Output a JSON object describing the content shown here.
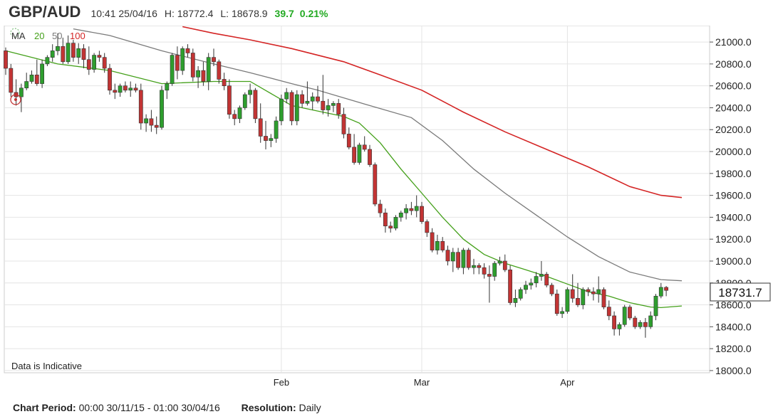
{
  "header": {
    "symbol": "GBP/AUD",
    "timestamp": "10:41 25/04/16",
    "high": "H: 18772.4",
    "low": "L: 18678.9",
    "change": "39.7",
    "change_pct": "0.21%",
    "change_color": "#22aa22"
  },
  "legend": {
    "ma_label": "MA",
    "ma20_label": "20",
    "ma50_label": "50",
    "ma100_label": "100",
    "ma20_color": "#44a01a",
    "ma50_color": "#7a7a7a",
    "ma100_color": "#d42424"
  },
  "notice": "Data is Indicative",
  "footer": {
    "period_label": "Chart Period:",
    "period_value": "00:00 30/11/15 - 01:00 30/04/16",
    "resolution_label": "Resolution:",
    "resolution_value": "Daily"
  },
  "chart_data": {
    "type": "candlestick",
    "title": "GBP/AUD",
    "y_ticks": [
      18000,
      18200,
      18400,
      18600,
      18800,
      19000,
      19200,
      19400,
      19600,
      19800,
      20000,
      20200,
      20400,
      20600,
      20800,
      21000
    ],
    "y_tick_labels": [
      "18000.0",
      "18200.0",
      "18400.0",
      "18600.0",
      "18800.0",
      "19000.0",
      "19200.0",
      "19400.0",
      "19600.0",
      "19800.0",
      "20000.0",
      "20200.0",
      "20400.0",
      "20600.0",
      "20800.0",
      "21000.0"
    ],
    "ylim": [
      17980,
      21150
    ],
    "x_month_labels": [
      "Feb",
      "Mar",
      "Apr"
    ],
    "x_month_index": [
      53,
      80,
      108
    ],
    "current_price": "18731.7",
    "up_color": "#2e9e2e",
    "down_color": "#c23434",
    "candles": [
      [
        20920,
        20950,
        20700,
        20760
      ],
      [
        20760,
        20800,
        20500,
        20540
      ],
      [
        20540,
        20660,
        20420,
        20500
      ],
      [
        20500,
        20620,
        20360,
        20580
      ],
      [
        20580,
        20720,
        20560,
        20640
      ],
      [
        20640,
        20740,
        20620,
        20700
      ],
      [
        20700,
        20840,
        20600,
        20620
      ],
      [
        20620,
        20840,
        20580,
        20800
      ],
      [
        20800,
        20880,
        20780,
        20860
      ],
      [
        20860,
        20980,
        20820,
        20920
      ],
      [
        20920,
        21080,
        20880,
        20960
      ],
      [
        20960,
        21040,
        20800,
        20820
      ],
      [
        20820,
        21060,
        20800,
        20990
      ],
      [
        20990,
        21020,
        20820,
        20860
      ],
      [
        20860,
        20990,
        20800,
        20940
      ],
      [
        20940,
        20980,
        20760,
        20840
      ],
      [
        20840,
        20960,
        20700,
        20750
      ],
      [
        20750,
        20900,
        20720,
        20880
      ],
      [
        20880,
        20920,
        20820,
        20860
      ],
      [
        20860,
        20900,
        20720,
        20760
      ],
      [
        20760,
        20800,
        20520,
        20560
      ],
      [
        20560,
        20620,
        20480,
        20540
      ],
      [
        20540,
        20620,
        20500,
        20600
      ],
      [
        20600,
        20640,
        20540,
        20560
      ],
      [
        20560,
        20640,
        20500,
        20580
      ],
      [
        20580,
        20620,
        20540,
        20560
      ],
      [
        20560,
        20620,
        20200,
        20260
      ],
      [
        20260,
        20340,
        20180,
        20300
      ],
      [
        20300,
        20380,
        20180,
        20240
      ],
      [
        20240,
        20320,
        20160,
        20220
      ],
      [
        20220,
        20600,
        20200,
        20560
      ],
      [
        20560,
        20640,
        20480,
        20620
      ],
      [
        20620,
        20900,
        20600,
        20880
      ],
      [
        20880,
        20960,
        20660,
        20740
      ],
      [
        20740,
        20960,
        20700,
        20940
      ],
      [
        20940,
        20980,
        20860,
        20900
      ],
      [
        20900,
        20940,
        20640,
        20680
      ],
      [
        20680,
        20780,
        20580,
        20740
      ],
      [
        20740,
        20820,
        20600,
        20640
      ],
      [
        20640,
        20900,
        20560,
        20860
      ],
      [
        20860,
        20940,
        20780,
        20820
      ],
      [
        20820,
        20840,
        20620,
        20660
      ],
      [
        20660,
        20720,
        20560,
        20600
      ],
      [
        20600,
        20660,
        20300,
        20340
      ],
      [
        20340,
        20380,
        20240,
        20300
      ],
      [
        20300,
        20420,
        20260,
        20400
      ],
      [
        20400,
        20540,
        20380,
        20520
      ],
      [
        20520,
        20620,
        20440,
        20560
      ],
      [
        20560,
        20580,
        20260,
        20300
      ],
      [
        20300,
        20440,
        20080,
        20140
      ],
      [
        20140,
        20280,
        20020,
        20100
      ],
      [
        20100,
        20160,
        20040,
        20120
      ],
      [
        20120,
        20320,
        20080,
        20280
      ],
      [
        20280,
        20520,
        20240,
        20480
      ],
      [
        20480,
        20580,
        20440,
        20540
      ],
      [
        20540,
        20560,
        20240,
        20280
      ],
      [
        20280,
        20560,
        20240,
        20520
      ],
      [
        20520,
        20560,
        20400,
        20440
      ],
      [
        20440,
        20640,
        20420,
        20460
      ],
      [
        20460,
        20540,
        20380,
        20500
      ],
      [
        20500,
        20600,
        20440,
        20460
      ],
      [
        20460,
        20700,
        20340,
        20380
      ],
      [
        20380,
        20480,
        20320,
        20420
      ],
      [
        20420,
        20460,
        20360,
        20440
      ],
      [
        20440,
        20480,
        20300,
        20340
      ],
      [
        20340,
        20400,
        20120,
        20160
      ],
      [
        20160,
        20220,
        20020,
        20040
      ],
      [
        20040,
        20160,
        19880,
        19900
      ],
      [
        19900,
        20080,
        19880,
        20060
      ],
      [
        20060,
        20140,
        20000,
        20020
      ],
      [
        20020,
        20060,
        19860,
        19880
      ],
      [
        19880,
        19900,
        19500,
        19520
      ],
      [
        19520,
        19560,
        19400,
        19440
      ],
      [
        19440,
        19480,
        19260,
        19320
      ],
      [
        19320,
        19360,
        19260,
        19300
      ],
      [
        19300,
        19420,
        19280,
        19400
      ],
      [
        19400,
        19460,
        19360,
        19440
      ],
      [
        19440,
        19520,
        19380,
        19480
      ],
      [
        19480,
        19540,
        19420,
        19460
      ],
      [
        19460,
        19600,
        19400,
        19500
      ],
      [
        19500,
        19540,
        19340,
        19360
      ],
      [
        19360,
        19380,
        19220,
        19260
      ],
      [
        19260,
        19300,
        19080,
        19100
      ],
      [
        19100,
        19240,
        19060,
        19180
      ],
      [
        19180,
        19220,
        19080,
        19100
      ],
      [
        19100,
        19140,
        18960,
        19000
      ],
      [
        19000,
        19120,
        18900,
        19080
      ],
      [
        19080,
        19120,
        18920,
        18940
      ],
      [
        18940,
        19120,
        18880,
        19100
      ],
      [
        19100,
        19120,
        18920,
        18940
      ],
      [
        18940,
        19020,
        18880,
        18960
      ],
      [
        18960,
        18980,
        18880,
        18940
      ],
      [
        18940,
        18980,
        18840,
        18880
      ],
      [
        18880,
        18960,
        18620,
        18860
      ],
      [
        18860,
        19000,
        18820,
        18980
      ],
      [
        18980,
        19040,
        18960,
        19000
      ],
      [
        19000,
        19060,
        18900,
        18920
      ],
      [
        18920,
        18960,
        18600,
        18620
      ],
      [
        18620,
        18740,
        18580,
        18660
      ],
      [
        18660,
        18760,
        18640,
        18740
      ],
      [
        18740,
        18820,
        18700,
        18780
      ],
      [
        18780,
        18840,
        18740,
        18800
      ],
      [
        18800,
        18900,
        18760,
        18860
      ],
      [
        18860,
        19000,
        18820,
        18880
      ],
      [
        18880,
        18900,
        18760,
        18780
      ],
      [
        18780,
        18800,
        18680,
        18700
      ],
      [
        18700,
        18740,
        18500,
        18520
      ],
      [
        18520,
        18580,
        18480,
        18540
      ],
      [
        18540,
        18760,
        18520,
        18740
      ],
      [
        18740,
        18880,
        18620,
        18660
      ],
      [
        18660,
        18800,
        18580,
        18600
      ],
      [
        18600,
        18760,
        18560,
        18740
      ],
      [
        18740,
        18760,
        18680,
        18720
      ],
      [
        18720,
        18760,
        18640,
        18700
      ],
      [
        18700,
        18860,
        18620,
        18740
      ],
      [
        18740,
        18760,
        18560,
        18580
      ],
      [
        18580,
        18640,
        18460,
        18500
      ],
      [
        18500,
        18540,
        18320,
        18380
      ],
      [
        18380,
        18440,
        18320,
        18420
      ],
      [
        18420,
        18600,
        18400,
        18580
      ],
      [
        18580,
        18600,
        18460,
        18480
      ],
      [
        18480,
        18500,
        18380,
        18400
      ],
      [
        18400,
        18460,
        18380,
        18440
      ],
      [
        18440,
        18480,
        18300,
        18400
      ],
      [
        18400,
        18540,
        18380,
        18500
      ],
      [
        18500,
        18700,
        18460,
        18680
      ],
      [
        18680,
        18800,
        18660,
        18760
      ],
      [
        18760,
        18772,
        18679,
        18732
      ]
    ],
    "ma20": [
      [
        0,
        20920
      ],
      [
        10,
        20800
      ],
      [
        20,
        20740
      ],
      [
        30,
        20620
      ],
      [
        40,
        20640
      ],
      [
        47,
        20640
      ],
      [
        55,
        20420
      ],
      [
        60,
        20370
      ],
      [
        65,
        20320
      ],
      [
        68,
        20260
      ],
      [
        72,
        20080
      ],
      [
        76,
        19840
      ],
      [
        80,
        19620
      ],
      [
        84,
        19400
      ],
      [
        88,
        19200
      ],
      [
        92,
        19060
      ],
      [
        96,
        18980
      ],
      [
        100,
        18920
      ],
      [
        104,
        18860
      ],
      [
        108,
        18790
      ],
      [
        112,
        18720
      ],
      [
        116,
        18680
      ],
      [
        120,
        18620
      ],
      [
        124,
        18580
      ],
      [
        126,
        18575
      ],
      [
        130,
        18590
      ]
    ],
    "ma50": [
      [
        13,
        21120
      ],
      [
        20,
        21060
      ],
      [
        30,
        20920
      ],
      [
        40,
        20800
      ],
      [
        47,
        20720
      ],
      [
        55,
        20620
      ],
      [
        60,
        20560
      ],
      [
        70,
        20420
      ],
      [
        78,
        20310
      ],
      [
        84,
        20100
      ],
      [
        90,
        19840
      ],
      [
        96,
        19620
      ],
      [
        102,
        19420
      ],
      [
        108,
        19220
      ],
      [
        114,
        19040
      ],
      [
        120,
        18900
      ],
      [
        126,
        18830
      ],
      [
        130,
        18820
      ]
    ],
    "ma100": [
      [
        34,
        21140
      ],
      [
        40,
        21080
      ],
      [
        47,
        21020
      ],
      [
        55,
        20940
      ],
      [
        65,
        20820
      ],
      [
        72,
        20700
      ],
      [
        80,
        20560
      ],
      [
        88,
        20360
      ],
      [
        96,
        20180
      ],
      [
        104,
        20020
      ],
      [
        112,
        19860
      ],
      [
        120,
        19680
      ],
      [
        126,
        19600
      ],
      [
        130,
        19580
      ]
    ]
  }
}
